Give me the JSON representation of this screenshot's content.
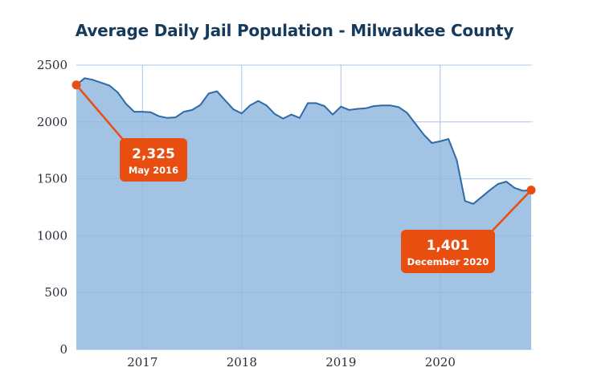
{
  "chart_data": {
    "type": "area",
    "title": "Average Daily Jail Population - Milwaukee County",
    "xlabel": "",
    "ylabel": "",
    "ylim": [
      0,
      2500
    ],
    "yticks": [
      0,
      500,
      1000,
      1500,
      2000,
      2500
    ],
    "xticks": [
      "2017",
      "2018",
      "2019",
      "2020"
    ],
    "grid": true,
    "start_month": "2016-05",
    "end_month": "2020-12",
    "series": [
      {
        "name": "Average Daily Jail Population",
        "x": [
          "2016-05",
          "2016-06",
          "2016-07",
          "2016-08",
          "2016-09",
          "2016-10",
          "2016-11",
          "2016-12",
          "2017-01",
          "2017-02",
          "2017-03",
          "2017-04",
          "2017-05",
          "2017-06",
          "2017-07",
          "2017-08",
          "2017-09",
          "2017-10",
          "2017-11",
          "2017-12",
          "2018-01",
          "2018-02",
          "2018-03",
          "2018-04",
          "2018-05",
          "2018-06",
          "2018-07",
          "2018-08",
          "2018-09",
          "2018-10",
          "2018-11",
          "2018-12",
          "2019-01",
          "2019-02",
          "2019-03",
          "2019-04",
          "2019-05",
          "2019-06",
          "2019-07",
          "2019-08",
          "2019-09",
          "2019-10",
          "2019-11",
          "2019-12",
          "2020-01",
          "2020-02",
          "2020-03",
          "2020-04",
          "2020-05",
          "2020-06",
          "2020-07",
          "2020-08",
          "2020-09",
          "2020-10",
          "2020-11",
          "2020-12"
        ],
        "values": [
          2325,
          2385,
          2370,
          2345,
          2320,
          2260,
          2160,
          2090,
          2090,
          2085,
          2050,
          2035,
          2040,
          2090,
          2105,
          2150,
          2250,
          2270,
          2190,
          2110,
          2075,
          2145,
          2185,
          2145,
          2070,
          2030,
          2065,
          2035,
          2165,
          2165,
          2140,
          2065,
          2135,
          2105,
          2115,
          2120,
          2140,
          2145,
          2145,
          2130,
          2080,
          1985,
          1890,
          1815,
          1830,
          1850,
          1665,
          1305,
          1280,
          1340,
          1400,
          1455,
          1475,
          1420,
          1395,
          1401
        ]
      }
    ],
    "annotations": [
      {
        "value_label": "2,325",
        "date_label": "May 2016",
        "month": "2016-05",
        "value": 2325
      },
      {
        "value_label": "1,401",
        "date_label": "December 2020",
        "month": "2020-12",
        "value": 1401
      }
    ],
    "colors": {
      "area_fill": "#9dc0e3",
      "line": "#2e6aa6",
      "grid": "#dde8f2",
      "callout": "#e84e0f",
      "title": "#153a5b"
    }
  }
}
